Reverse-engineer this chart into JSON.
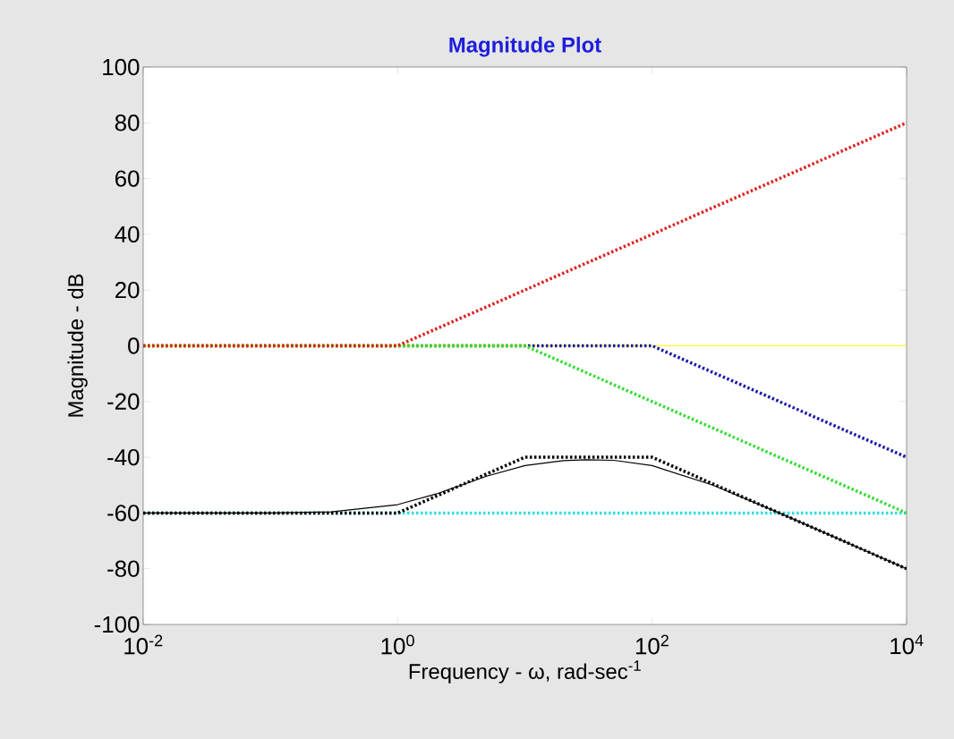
{
  "chart_data": {
    "type": "line",
    "title": "Magnitude Plot",
    "xlabel": "Frequency - ω, rad-sec$^{-1}$",
    "ylabel": "Magnitude - dB",
    "log": "x",
    "marker": "none",
    "xlim": [
      0.01,
      10000
    ],
    "ylim": [
      -100,
      100
    ],
    "xticks": [
      {
        "value": 0.01,
        "label": "10$^{-2}$"
      },
      {
        "value": 1,
        "label": "10$^{0}$"
      },
      {
        "value": 100,
        "label": "10$^{2}$"
      },
      {
        "value": 10000,
        "label": "10$^{4}$"
      }
    ],
    "yticks": [
      -100,
      -80,
      -60,
      -40,
      -20,
      0,
      20,
      40,
      60,
      80,
      100
    ],
    "series": [
      {
        "color": "#ffff00",
        "line_style": "solid",
        "x": [
          0.01,
          10000
        ],
        "values": [
          0,
          0
        ]
      },
      {
        "color": "#33dddd",
        "line_style": "dotted",
        "x": [
          0.01,
          10000
        ],
        "values": [
          -60,
          -60
        ]
      },
      {
        "color": "#1a1aaa",
        "line_style": "dotted",
        "x": [
          0.01,
          100,
          10000
        ],
        "values": [
          0,
          0,
          -40
        ]
      },
      {
        "color": "#33dd33",
        "line_style": "dotted",
        "x": [
          0.01,
          10,
          10000
        ],
        "values": [
          0,
          0,
          -60
        ]
      },
      {
        "color": "#dd2222",
        "line_style": "dotted",
        "x": [
          0.01,
          1,
          10000
        ],
        "values": [
          0,
          0,
          80
        ]
      },
      {
        "color": "#000000",
        "line_style": "dotted",
        "x": [
          0.01,
          1,
          10,
          100,
          10000
        ],
        "values": [
          -60,
          -60,
          -40,
          -40,
          -80
        ]
      },
      {
        "color": "#000000",
        "line_style": "solid",
        "x": [
          0.01,
          0.1,
          0.3,
          1,
          2,
          3,
          5,
          10,
          20,
          30,
          50,
          100,
          300,
          1000,
          10000
        ],
        "values": [
          -60,
          -60,
          -59.6,
          -57,
          -53.2,
          -50.4,
          -46.8,
          -43,
          -41.2,
          -40.9,
          -41.1,
          -43,
          -50,
          -60,
          -80
        ]
      }
    ]
  }
}
